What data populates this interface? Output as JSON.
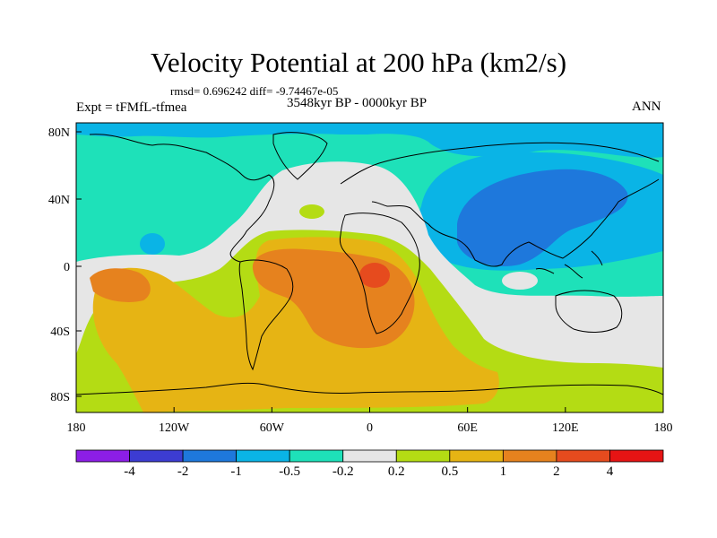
{
  "figure": {
    "title": "Velocity Potential at 200 hPa (km2/s)",
    "stats": "rmsd= 0.696242 diff= -9.74467e-05",
    "experiment": "Expt = tFMfL-tfmea",
    "period": "3548kyr BP - 0000kyr BP",
    "season": "ANN"
  },
  "axes": {
    "lon_ticks": [
      "180",
      "120W",
      "60W",
      "0",
      "60E",
      "120E",
      "180"
    ],
    "lat_ticks": [
      "80N",
      "40N",
      "0",
      "40S",
      "80S"
    ]
  },
  "colorbar": {
    "labels": [
      "-4",
      "-2",
      "-1",
      "-0.5",
      "-0.2",
      "0.2",
      "0.5",
      "1",
      "2",
      "4"
    ],
    "colors": [
      "#8c1ee6",
      "#3c3cd2",
      "#1e78dc",
      "#0ab4e6",
      "#1ee1b9",
      "#e6e6e6",
      "#b4dc14",
      "#e6b414",
      "#e6821e",
      "#e64b1e",
      "#e61414"
    ]
  },
  "map_colors": {
    "cyan": "#1ee1b9",
    "lightblue": "#0ab4e6",
    "blue": "#1e78dc",
    "gray": "#e6e6e6",
    "green": "#b4dc14",
    "yellow": "#e6b414",
    "orange": "#e6821e",
    "red": "#e64b1e",
    "coast": "#000000"
  }
}
